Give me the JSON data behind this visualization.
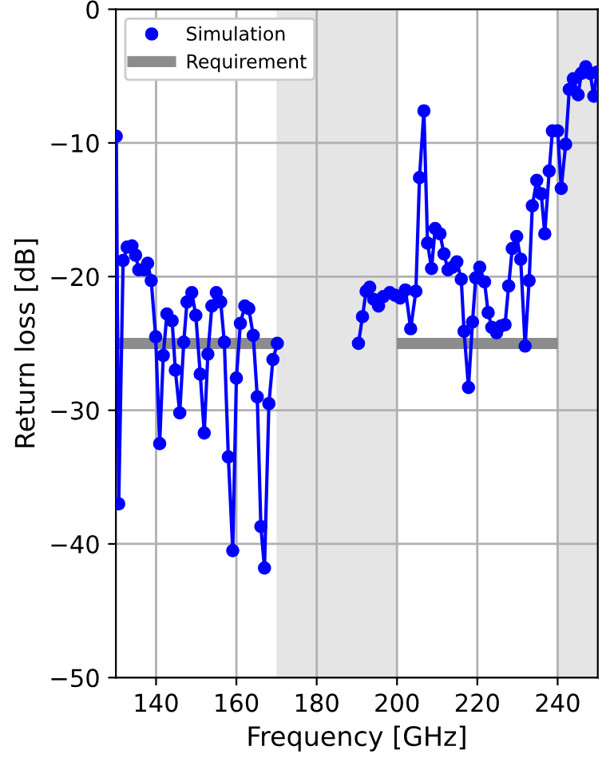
{
  "chart_data": {
    "type": "line",
    "xlabel": "Frequency [GHz]",
    "ylabel": "Return loss [dB]",
    "xlim": [
      130,
      250
    ],
    "ylim": [
      -50,
      0
    ],
    "xticks": [
      140,
      160,
      180,
      200,
      220,
      240
    ],
    "yticks": [
      -50,
      -40,
      -30,
      -20,
      -10,
      0
    ],
    "grid": true,
    "legend": "top left",
    "bands": [
      {
        "axis": "x",
        "from": 170,
        "to": 200,
        "color": "#e5e5e5"
      },
      {
        "axis": "x",
        "from": 240,
        "to": 250,
        "color": "#e5e5e5"
      }
    ],
    "series": [
      {
        "name": "Simulation",
        "color": "#0000ff",
        "marker": "circle",
        "x": [
          130.1,
          130.7,
          131.8,
          132.8,
          134.0,
          134.9,
          135.7,
          137.0,
          137.9,
          138.8,
          139.9,
          140.9,
          141.8,
          142.7,
          144.0,
          144.8,
          145.9,
          146.9,
          147.7,
          148.9,
          149.9,
          151.0,
          152.0,
          152.9,
          153.9,
          155.0,
          156.1,
          157.0,
          158.0,
          159.1,
          160.0,
          161.0,
          162.1,
          163.1,
          164.2,
          165.2,
          166.1,
          167.0,
          168.1,
          169.1,
          170.2,
          180,
          190.4,
          191.4,
          192.3,
          193.2,
          194.2,
          195.4,
          196.6,
          198.2,
          199.5,
          200.8,
          202.1,
          203.4,
          204.7,
          205.6,
          206.7,
          207.6,
          208.6,
          209.5,
          210.7,
          211.7,
          212.7,
          213.8,
          214.9,
          216.0,
          216.7,
          217.8,
          218.8,
          219.6,
          220.6,
          221.8,
          222.7,
          223.6,
          224.8,
          225.9,
          226.9,
          227.8,
          228.7,
          229.8,
          230.8,
          231.9,
          232.9,
          233.7,
          234.8,
          235.9,
          236.8,
          237.9,
          238.7,
          240.0,
          240.9,
          242.0,
          242.9,
          243.9,
          245.1,
          245.9,
          247.0,
          248.1,
          249.0,
          249.8
        ],
        "values": [
          -9.5,
          -37.0,
          -18.8,
          -17.8,
          -17.7,
          -18.4,
          -19.5,
          -19.5,
          -19.0,
          -20.3,
          -24.5,
          -32.5,
          -25.9,
          -22.8,
          -23.3,
          -27.0,
          -30.2,
          -24.9,
          -21.9,
          -21.2,
          -22.9,
          -27.3,
          -31.7,
          -25.8,
          -22.2,
          -21.2,
          -21.9,
          -24.9,
          -33.5,
          -40.5,
          -27.6,
          -23.5,
          -22.2,
          -22.4,
          -24.4,
          -29.0,
          -38.7,
          -41.8,
          -29.5,
          -26.2,
          -25.0,
          null,
          -25.0,
          -23.0,
          -21.1,
          -20.8,
          -21.7,
          -22.2,
          -21.5,
          -21.2,
          -21.4,
          -21.6,
          -21.0,
          -23.9,
          -21.1,
          -12.6,
          -7.6,
          -17.5,
          -19.4,
          -16.4,
          -16.8,
          -18.3,
          -19.5,
          -19.3,
          -18.9,
          -20.2,
          -24.1,
          -28.3,
          -23.4,
          -20.1,
          -19.3,
          -20.4,
          -22.7,
          -23.8,
          -24.2,
          -23.7,
          -23.6,
          -20.7,
          -17.9,
          -17.0,
          -18.7,
          -25.2,
          -20.3,
          -14.7,
          -12.8,
          -13.8,
          -16.8,
          -12.1,
          -9.1,
          -9.1,
          -13.4,
          -10.1,
          -6.0,
          -5.2,
          -6.4,
          -4.8,
          -4.3,
          -4.8,
          -6.5,
          -4.7
        ]
      },
      {
        "name": "Requirement",
        "color": "#808080",
        "marker": "none",
        "x": [
          130,
          170,
          185,
          200,
          240
        ],
        "values": [
          -25,
          -25,
          null,
          -25,
          -25
        ]
      }
    ]
  }
}
